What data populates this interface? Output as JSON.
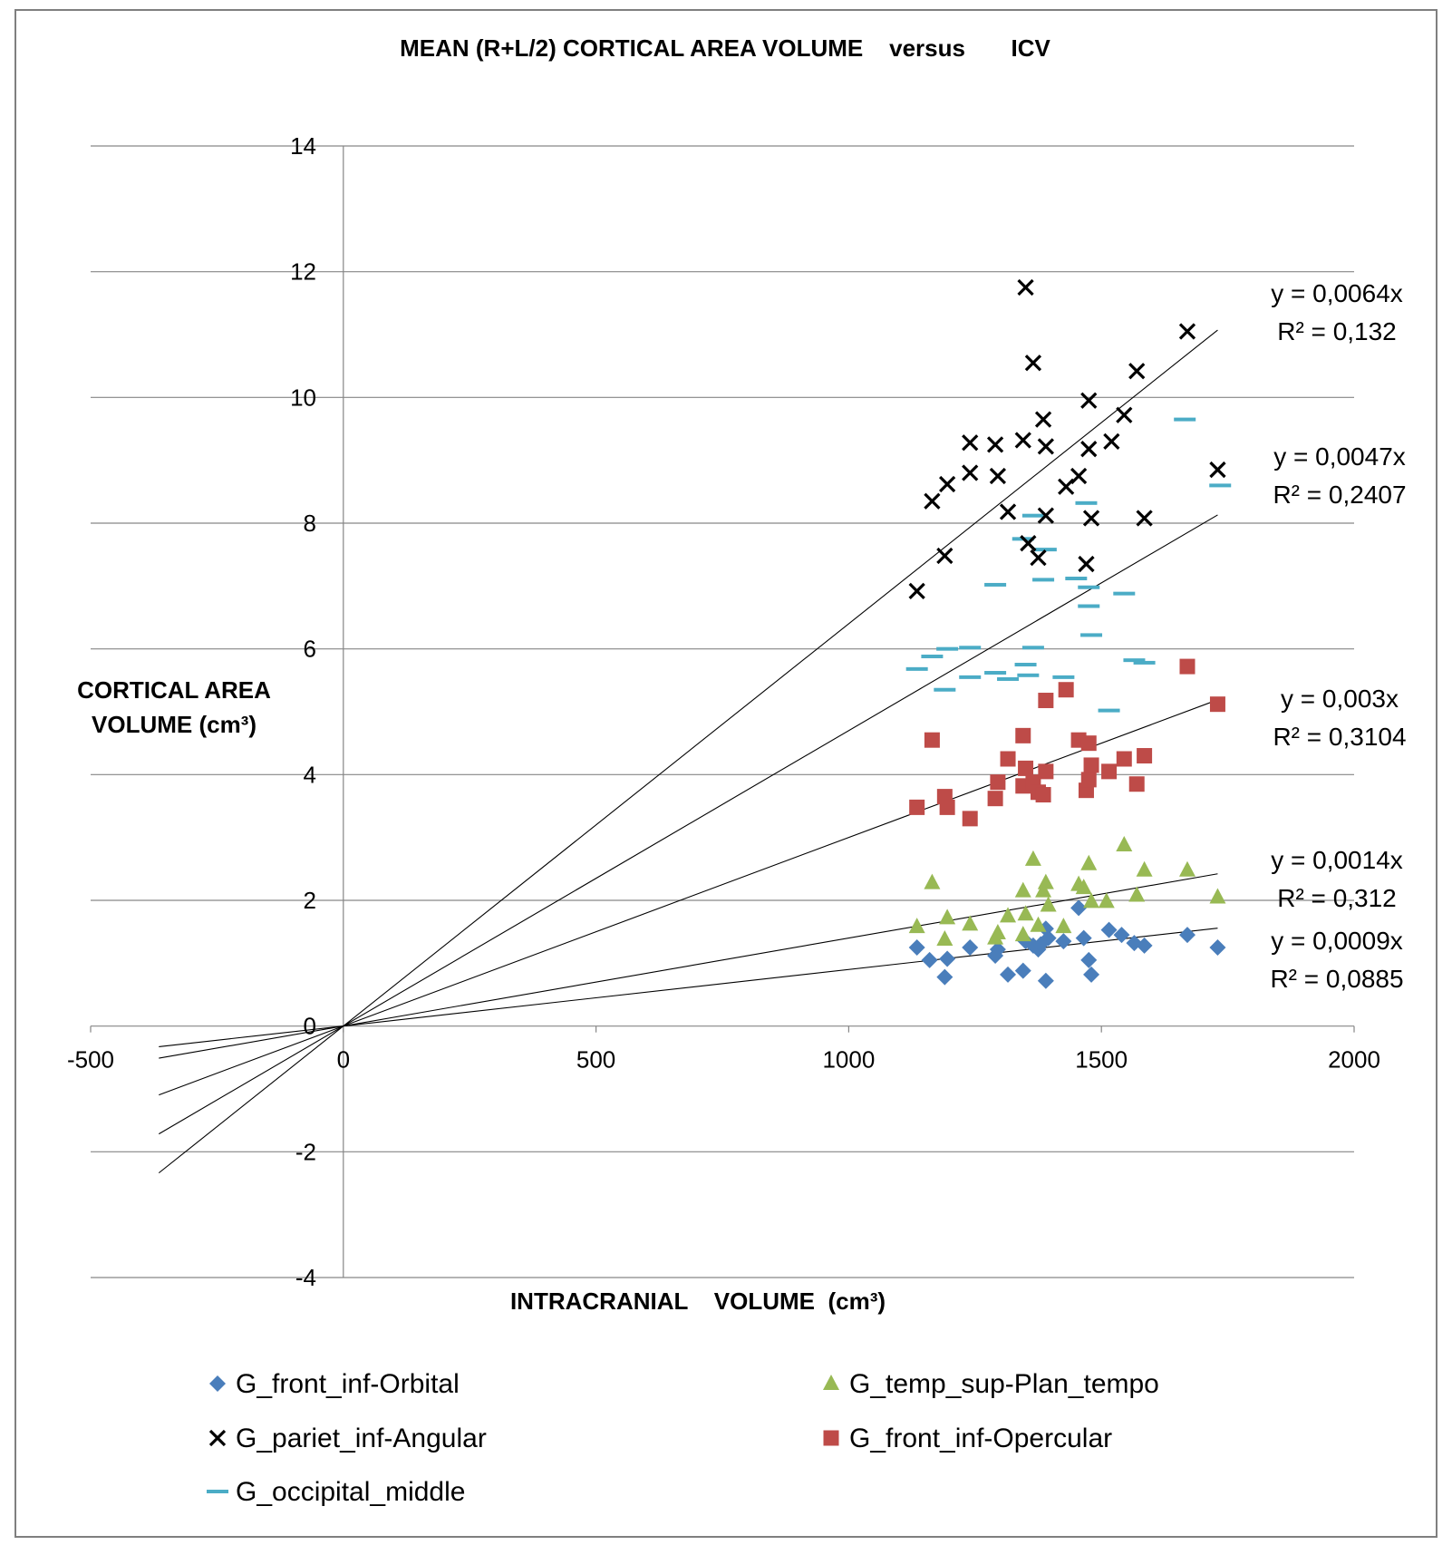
{
  "chart_data": {
    "type": "scatter",
    "title": "MEAN (R+L/2) CORTICAL AREA VOLUME    versus       ICV",
    "ylabel_lines": [
      "CORTICAL AREA",
      "VOLUME (cm³)"
    ],
    "xlabel": "INTRACRANIAL    VOLUME  (cm³)",
    "xlim": [
      -500,
      2000
    ],
    "ylim": [
      -4,
      14
    ],
    "x_ticks": [
      -500,
      0,
      500,
      1000,
      1500,
      2000
    ],
    "y_ticks": [
      -4,
      -2,
      0,
      2,
      4,
      6,
      8,
      10,
      12,
      14
    ],
    "grid": "horizontal",
    "legend_position": "bottom",
    "series": [
      {
        "name": "G_front_inf-Orbital",
        "marker": "diamond",
        "color": "#4a7ebb",
        "points": [
          [
            1135,
            1.25
          ],
          [
            1160,
            1.05
          ],
          [
            1190,
            0.78
          ],
          [
            1195,
            1.07
          ],
          [
            1240,
            1.25
          ],
          [
            1290,
            1.12
          ],
          [
            1295,
            1.22
          ],
          [
            1315,
            0.82
          ],
          [
            1345,
            0.88
          ],
          [
            1350,
            1.35
          ],
          [
            1365,
            1.28
          ],
          [
            1375,
            1.22
          ],
          [
            1380,
            1.3
          ],
          [
            1390,
            0.72
          ],
          [
            1390,
            1.55
          ],
          [
            1395,
            1.4
          ],
          [
            1425,
            1.35
          ],
          [
            1455,
            1.88
          ],
          [
            1465,
            1.4
          ],
          [
            1475,
            1.05
          ],
          [
            1480,
            0.82
          ],
          [
            1515,
            1.53
          ],
          [
            1540,
            1.45
          ],
          [
            1565,
            1.32
          ],
          [
            1585,
            1.28
          ],
          [
            1670,
            1.45
          ],
          [
            1730,
            1.25
          ]
        ],
        "fit": {
          "slope": 0.0009,
          "equation": "y = 0,0009x",
          "r2": "R² = 0,0885"
        }
      },
      {
        "name": "G_temp_sup-Plan_tempo",
        "marker": "triangle",
        "color": "#98b954",
        "points": [
          [
            1135,
            1.58
          ],
          [
            1165,
            2.28
          ],
          [
            1190,
            1.38
          ],
          [
            1195,
            1.72
          ],
          [
            1240,
            1.62
          ],
          [
            1290,
            1.4
          ],
          [
            1295,
            1.48
          ],
          [
            1315,
            1.75
          ],
          [
            1345,
            1.45
          ],
          [
            1345,
            2.15
          ],
          [
            1350,
            1.78
          ],
          [
            1365,
            2.65
          ],
          [
            1375,
            1.6
          ],
          [
            1385,
            2.15
          ],
          [
            1390,
            2.28
          ],
          [
            1395,
            1.92
          ],
          [
            1425,
            1.58
          ],
          [
            1455,
            2.25
          ],
          [
            1465,
            2.2
          ],
          [
            1475,
            2.58
          ],
          [
            1480,
            1.98
          ],
          [
            1510,
            1.98
          ],
          [
            1545,
            2.88
          ],
          [
            1570,
            2.08
          ],
          [
            1585,
            2.48
          ],
          [
            1670,
            2.48
          ],
          [
            1730,
            2.05
          ]
        ],
        "fit": {
          "slope": 0.0014,
          "equation": "y = 0,0014x",
          "r2": "R² = 0,312"
        }
      },
      {
        "name": "G_pariet_inf-Angular",
        "marker": "x",
        "color": "#000000",
        "points": [
          [
            1135,
            6.92
          ],
          [
            1165,
            8.35
          ],
          [
            1190,
            7.48
          ],
          [
            1195,
            8.62
          ],
          [
            1240,
            8.8
          ],
          [
            1240,
            9.28
          ],
          [
            1290,
            9.25
          ],
          [
            1295,
            8.75
          ],
          [
            1315,
            8.18
          ],
          [
            1345,
            9.32
          ],
          [
            1350,
            11.75
          ],
          [
            1355,
            7.68
          ],
          [
            1365,
            10.55
          ],
          [
            1375,
            7.45
          ],
          [
            1385,
            9.65
          ],
          [
            1390,
            9.22
          ],
          [
            1390,
            8.12
          ],
          [
            1430,
            8.58
          ],
          [
            1455,
            8.75
          ],
          [
            1470,
            7.35
          ],
          [
            1475,
            9.18
          ],
          [
            1475,
            9.95
          ],
          [
            1480,
            8.08
          ],
          [
            1520,
            9.3
          ],
          [
            1545,
            9.72
          ],
          [
            1570,
            10.42
          ],
          [
            1585,
            8.08
          ],
          [
            1670,
            11.05
          ],
          [
            1730,
            8.85
          ]
        ],
        "fit": {
          "slope": 0.0064,
          "equation": "y = 0,0064x",
          "r2": "R² = 0,132"
        }
      },
      {
        "name": "G_front_inf-Opercular",
        "marker": "square",
        "color": "#be4b48",
        "points": [
          [
            1135,
            3.48
          ],
          [
            1165,
            4.55
          ],
          [
            1190,
            3.65
          ],
          [
            1195,
            3.48
          ],
          [
            1240,
            3.3
          ],
          [
            1290,
            3.62
          ],
          [
            1295,
            3.88
          ],
          [
            1315,
            4.25
          ],
          [
            1345,
            4.62
          ],
          [
            1345,
            3.82
          ],
          [
            1350,
            4.1
          ],
          [
            1365,
            3.88
          ],
          [
            1375,
            3.72
          ],
          [
            1385,
            3.68
          ],
          [
            1390,
            4.05
          ],
          [
            1390,
            5.18
          ],
          [
            1430,
            5.35
          ],
          [
            1455,
            4.55
          ],
          [
            1470,
            3.75
          ],
          [
            1475,
            3.92
          ],
          [
            1475,
            4.5
          ],
          [
            1480,
            4.15
          ],
          [
            1515,
            4.05
          ],
          [
            1545,
            4.25
          ],
          [
            1570,
            3.85
          ],
          [
            1585,
            4.3
          ],
          [
            1670,
            5.72
          ],
          [
            1730,
            5.12
          ]
        ],
        "fit": {
          "slope": 0.003,
          "equation": "y = 0,003x",
          "r2": "R² = 0,3104"
        }
      },
      {
        "name": "G_occipital_middle",
        "marker": "dash",
        "color": "#4bacc6",
        "points": [
          [
            1135,
            5.68
          ],
          [
            1165,
            5.88
          ],
          [
            1190,
            5.35
          ],
          [
            1195,
            6.0
          ],
          [
            1240,
            6.02
          ],
          [
            1240,
            5.55
          ],
          [
            1290,
            7.02
          ],
          [
            1290,
            5.62
          ],
          [
            1315,
            5.52
          ],
          [
            1345,
            7.75
          ],
          [
            1350,
            5.75
          ],
          [
            1355,
            5.58
          ],
          [
            1365,
            6.02
          ],
          [
            1365,
            8.12
          ],
          [
            1385,
            7.1
          ],
          [
            1390,
            7.58
          ],
          [
            1425,
            5.55
          ],
          [
            1450,
            7.12
          ],
          [
            1470,
            8.32
          ],
          [
            1475,
            6.98
          ],
          [
            1475,
            6.68
          ],
          [
            1480,
            6.22
          ],
          [
            1515,
            5.02
          ],
          [
            1545,
            6.88
          ],
          [
            1565,
            5.82
          ],
          [
            1585,
            5.78
          ],
          [
            1665,
            9.65
          ],
          [
            1735,
            8.6
          ]
        ],
        "fit": {
          "slope": 0.0047,
          "equation": "y = 0,0047x",
          "r2": "R² = 0,2407"
        }
      }
    ],
    "fit_line_x_range": [
      -365,
      1730
    ],
    "legend_order": [
      "G_front_inf-Orbital",
      "G_temp_sup-Plan_tempo",
      "G_pariet_inf-Angular",
      "G_front_inf-Opercular",
      "G_occipital_middle"
    ]
  }
}
